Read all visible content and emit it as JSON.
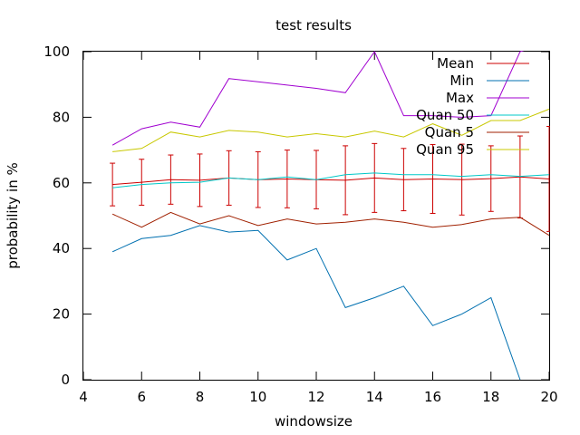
{
  "chart_data": {
    "type": "line",
    "title": "test results",
    "xlabel": "windowsize",
    "ylabel": "probability in %",
    "xlim": [
      4,
      20
    ],
    "ylim": [
      0,
      100
    ],
    "xticks": [
      4,
      6,
      8,
      10,
      12,
      14,
      16,
      18,
      20
    ],
    "yticks": [
      0,
      20,
      40,
      60,
      80,
      100
    ],
    "grid": false,
    "legend_position": "top-right",
    "x": [
      5,
      6,
      7,
      8,
      9,
      10,
      11,
      12,
      13,
      14,
      15,
      16,
      17,
      18,
      19,
      20
    ],
    "series": [
      {
        "name": "Mean",
        "color": "#cc0000",
        "values": [
          59.5,
          60.2,
          61,
          60.8,
          61.5,
          61,
          61.2,
          61,
          60.8,
          61.5,
          61,
          61.2,
          61,
          61.3,
          61.8,
          61.2
        ],
        "error": [
          6.5,
          7,
          7.5,
          8,
          8.3,
          8.5,
          8.8,
          8.9,
          10.5,
          10.5,
          9.5,
          10.5,
          10.8,
          10,
          12.5,
          16
        ]
      },
      {
        "name": "Min",
        "color": "#0070b0",
        "values": [
          39,
          43,
          44,
          47,
          45,
          45.5,
          36.5,
          40,
          22,
          25,
          28.5,
          16.5,
          20,
          25,
          0,
          null
        ]
      },
      {
        "name": "Max",
        "color": "#a000d0",
        "values": [
          71.5,
          76.5,
          78.5,
          77,
          91.8,
          90.8,
          89.8,
          88.8,
          87.5,
          100,
          80.5,
          80.5,
          80,
          80.5,
          100,
          103
        ]
      },
      {
        "name": "Quan 50",
        "color": "#00c8c8",
        "values": [
          58.5,
          59.5,
          60,
          60.2,
          61.5,
          61,
          61.8,
          61,
          62.5,
          63,
          62.5,
          62.5,
          62,
          62.5,
          62,
          62.5
        ]
      },
      {
        "name": "Quan 5",
        "color": "#a02000",
        "values": [
          50.5,
          46.5,
          51,
          47.5,
          50,
          47,
          49,
          47.5,
          48,
          49,
          48,
          46.5,
          47.3,
          49,
          49.5,
          44
        ]
      },
      {
        "name": "Quan 95",
        "color": "#c8c800",
        "values": [
          69.5,
          70.5,
          75.5,
          74,
          76,
          75.5,
          74,
          75,
          74,
          75.8,
          74,
          78,
          74.5,
          79,
          79,
          82.5
        ]
      }
    ]
  }
}
